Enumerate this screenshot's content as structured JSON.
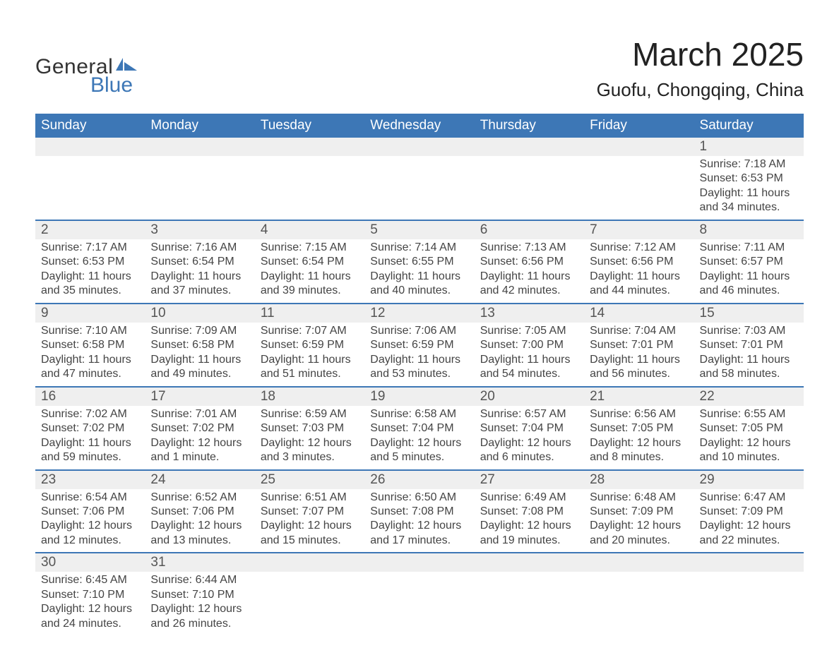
{
  "logo": {
    "text1": "General",
    "text2": "Blue"
  },
  "title": "March 2025",
  "subtitle": "Guofu, Chongqing, China",
  "colors": {
    "header_bg": "#3d77b6",
    "header_text": "#ffffff",
    "daynum_bg": "#efefef",
    "row_border": "#3d77b6",
    "body_text": "#444444",
    "logo_blue": "#3d77b6"
  },
  "typography": {
    "title_fontsize": 46,
    "subtitle_fontsize": 26,
    "dayheader_fontsize": 19,
    "daynum_fontsize": 19,
    "body_fontsize": 16
  },
  "calendar": {
    "type": "table",
    "day_headers": [
      "Sunday",
      "Monday",
      "Tuesday",
      "Wednesday",
      "Thursday",
      "Friday",
      "Saturday"
    ],
    "weeks": [
      [
        null,
        null,
        null,
        null,
        null,
        null,
        {
          "num": "1",
          "sunrise": "Sunrise: 7:18 AM",
          "sunset": "Sunset: 6:53 PM",
          "daylight1": "Daylight: 11 hours",
          "daylight2": "and 34 minutes."
        }
      ],
      [
        {
          "num": "2",
          "sunrise": "Sunrise: 7:17 AM",
          "sunset": "Sunset: 6:53 PM",
          "daylight1": "Daylight: 11 hours",
          "daylight2": "and 35 minutes."
        },
        {
          "num": "3",
          "sunrise": "Sunrise: 7:16 AM",
          "sunset": "Sunset: 6:54 PM",
          "daylight1": "Daylight: 11 hours",
          "daylight2": "and 37 minutes."
        },
        {
          "num": "4",
          "sunrise": "Sunrise: 7:15 AM",
          "sunset": "Sunset: 6:54 PM",
          "daylight1": "Daylight: 11 hours",
          "daylight2": "and 39 minutes."
        },
        {
          "num": "5",
          "sunrise": "Sunrise: 7:14 AM",
          "sunset": "Sunset: 6:55 PM",
          "daylight1": "Daylight: 11 hours",
          "daylight2": "and 40 minutes."
        },
        {
          "num": "6",
          "sunrise": "Sunrise: 7:13 AM",
          "sunset": "Sunset: 6:56 PM",
          "daylight1": "Daylight: 11 hours",
          "daylight2": "and 42 minutes."
        },
        {
          "num": "7",
          "sunrise": "Sunrise: 7:12 AM",
          "sunset": "Sunset: 6:56 PM",
          "daylight1": "Daylight: 11 hours",
          "daylight2": "and 44 minutes."
        },
        {
          "num": "8",
          "sunrise": "Sunrise: 7:11 AM",
          "sunset": "Sunset: 6:57 PM",
          "daylight1": "Daylight: 11 hours",
          "daylight2": "and 46 minutes."
        }
      ],
      [
        {
          "num": "9",
          "sunrise": "Sunrise: 7:10 AM",
          "sunset": "Sunset: 6:58 PM",
          "daylight1": "Daylight: 11 hours",
          "daylight2": "and 47 minutes."
        },
        {
          "num": "10",
          "sunrise": "Sunrise: 7:09 AM",
          "sunset": "Sunset: 6:58 PM",
          "daylight1": "Daylight: 11 hours",
          "daylight2": "and 49 minutes."
        },
        {
          "num": "11",
          "sunrise": "Sunrise: 7:07 AM",
          "sunset": "Sunset: 6:59 PM",
          "daylight1": "Daylight: 11 hours",
          "daylight2": "and 51 minutes."
        },
        {
          "num": "12",
          "sunrise": "Sunrise: 7:06 AM",
          "sunset": "Sunset: 6:59 PM",
          "daylight1": "Daylight: 11 hours",
          "daylight2": "and 53 minutes."
        },
        {
          "num": "13",
          "sunrise": "Sunrise: 7:05 AM",
          "sunset": "Sunset: 7:00 PM",
          "daylight1": "Daylight: 11 hours",
          "daylight2": "and 54 minutes."
        },
        {
          "num": "14",
          "sunrise": "Sunrise: 7:04 AM",
          "sunset": "Sunset: 7:01 PM",
          "daylight1": "Daylight: 11 hours",
          "daylight2": "and 56 minutes."
        },
        {
          "num": "15",
          "sunrise": "Sunrise: 7:03 AM",
          "sunset": "Sunset: 7:01 PM",
          "daylight1": "Daylight: 11 hours",
          "daylight2": "and 58 minutes."
        }
      ],
      [
        {
          "num": "16",
          "sunrise": "Sunrise: 7:02 AM",
          "sunset": "Sunset: 7:02 PM",
          "daylight1": "Daylight: 11 hours",
          "daylight2": "and 59 minutes."
        },
        {
          "num": "17",
          "sunrise": "Sunrise: 7:01 AM",
          "sunset": "Sunset: 7:02 PM",
          "daylight1": "Daylight: 12 hours",
          "daylight2": "and 1 minute."
        },
        {
          "num": "18",
          "sunrise": "Sunrise: 6:59 AM",
          "sunset": "Sunset: 7:03 PM",
          "daylight1": "Daylight: 12 hours",
          "daylight2": "and 3 minutes."
        },
        {
          "num": "19",
          "sunrise": "Sunrise: 6:58 AM",
          "sunset": "Sunset: 7:04 PM",
          "daylight1": "Daylight: 12 hours",
          "daylight2": "and 5 minutes."
        },
        {
          "num": "20",
          "sunrise": "Sunrise: 6:57 AM",
          "sunset": "Sunset: 7:04 PM",
          "daylight1": "Daylight: 12 hours",
          "daylight2": "and 6 minutes."
        },
        {
          "num": "21",
          "sunrise": "Sunrise: 6:56 AM",
          "sunset": "Sunset: 7:05 PM",
          "daylight1": "Daylight: 12 hours",
          "daylight2": "and 8 minutes."
        },
        {
          "num": "22",
          "sunrise": "Sunrise: 6:55 AM",
          "sunset": "Sunset: 7:05 PM",
          "daylight1": "Daylight: 12 hours",
          "daylight2": "and 10 minutes."
        }
      ],
      [
        {
          "num": "23",
          "sunrise": "Sunrise: 6:54 AM",
          "sunset": "Sunset: 7:06 PM",
          "daylight1": "Daylight: 12 hours",
          "daylight2": "and 12 minutes."
        },
        {
          "num": "24",
          "sunrise": "Sunrise: 6:52 AM",
          "sunset": "Sunset: 7:06 PM",
          "daylight1": "Daylight: 12 hours",
          "daylight2": "and 13 minutes."
        },
        {
          "num": "25",
          "sunrise": "Sunrise: 6:51 AM",
          "sunset": "Sunset: 7:07 PM",
          "daylight1": "Daylight: 12 hours",
          "daylight2": "and 15 minutes."
        },
        {
          "num": "26",
          "sunrise": "Sunrise: 6:50 AM",
          "sunset": "Sunset: 7:08 PM",
          "daylight1": "Daylight: 12 hours",
          "daylight2": "and 17 minutes."
        },
        {
          "num": "27",
          "sunrise": "Sunrise: 6:49 AM",
          "sunset": "Sunset: 7:08 PM",
          "daylight1": "Daylight: 12 hours",
          "daylight2": "and 19 minutes."
        },
        {
          "num": "28",
          "sunrise": "Sunrise: 6:48 AM",
          "sunset": "Sunset: 7:09 PM",
          "daylight1": "Daylight: 12 hours",
          "daylight2": "and 20 minutes."
        },
        {
          "num": "29",
          "sunrise": "Sunrise: 6:47 AM",
          "sunset": "Sunset: 7:09 PM",
          "daylight1": "Daylight: 12 hours",
          "daylight2": "and 22 minutes."
        }
      ],
      [
        {
          "num": "30",
          "sunrise": "Sunrise: 6:45 AM",
          "sunset": "Sunset: 7:10 PM",
          "daylight1": "Daylight: 12 hours",
          "daylight2": "and 24 minutes."
        },
        {
          "num": "31",
          "sunrise": "Sunrise: 6:44 AM",
          "sunset": "Sunset: 7:10 PM",
          "daylight1": "Daylight: 12 hours",
          "daylight2": "and 26 minutes."
        },
        null,
        null,
        null,
        null,
        null
      ]
    ]
  }
}
